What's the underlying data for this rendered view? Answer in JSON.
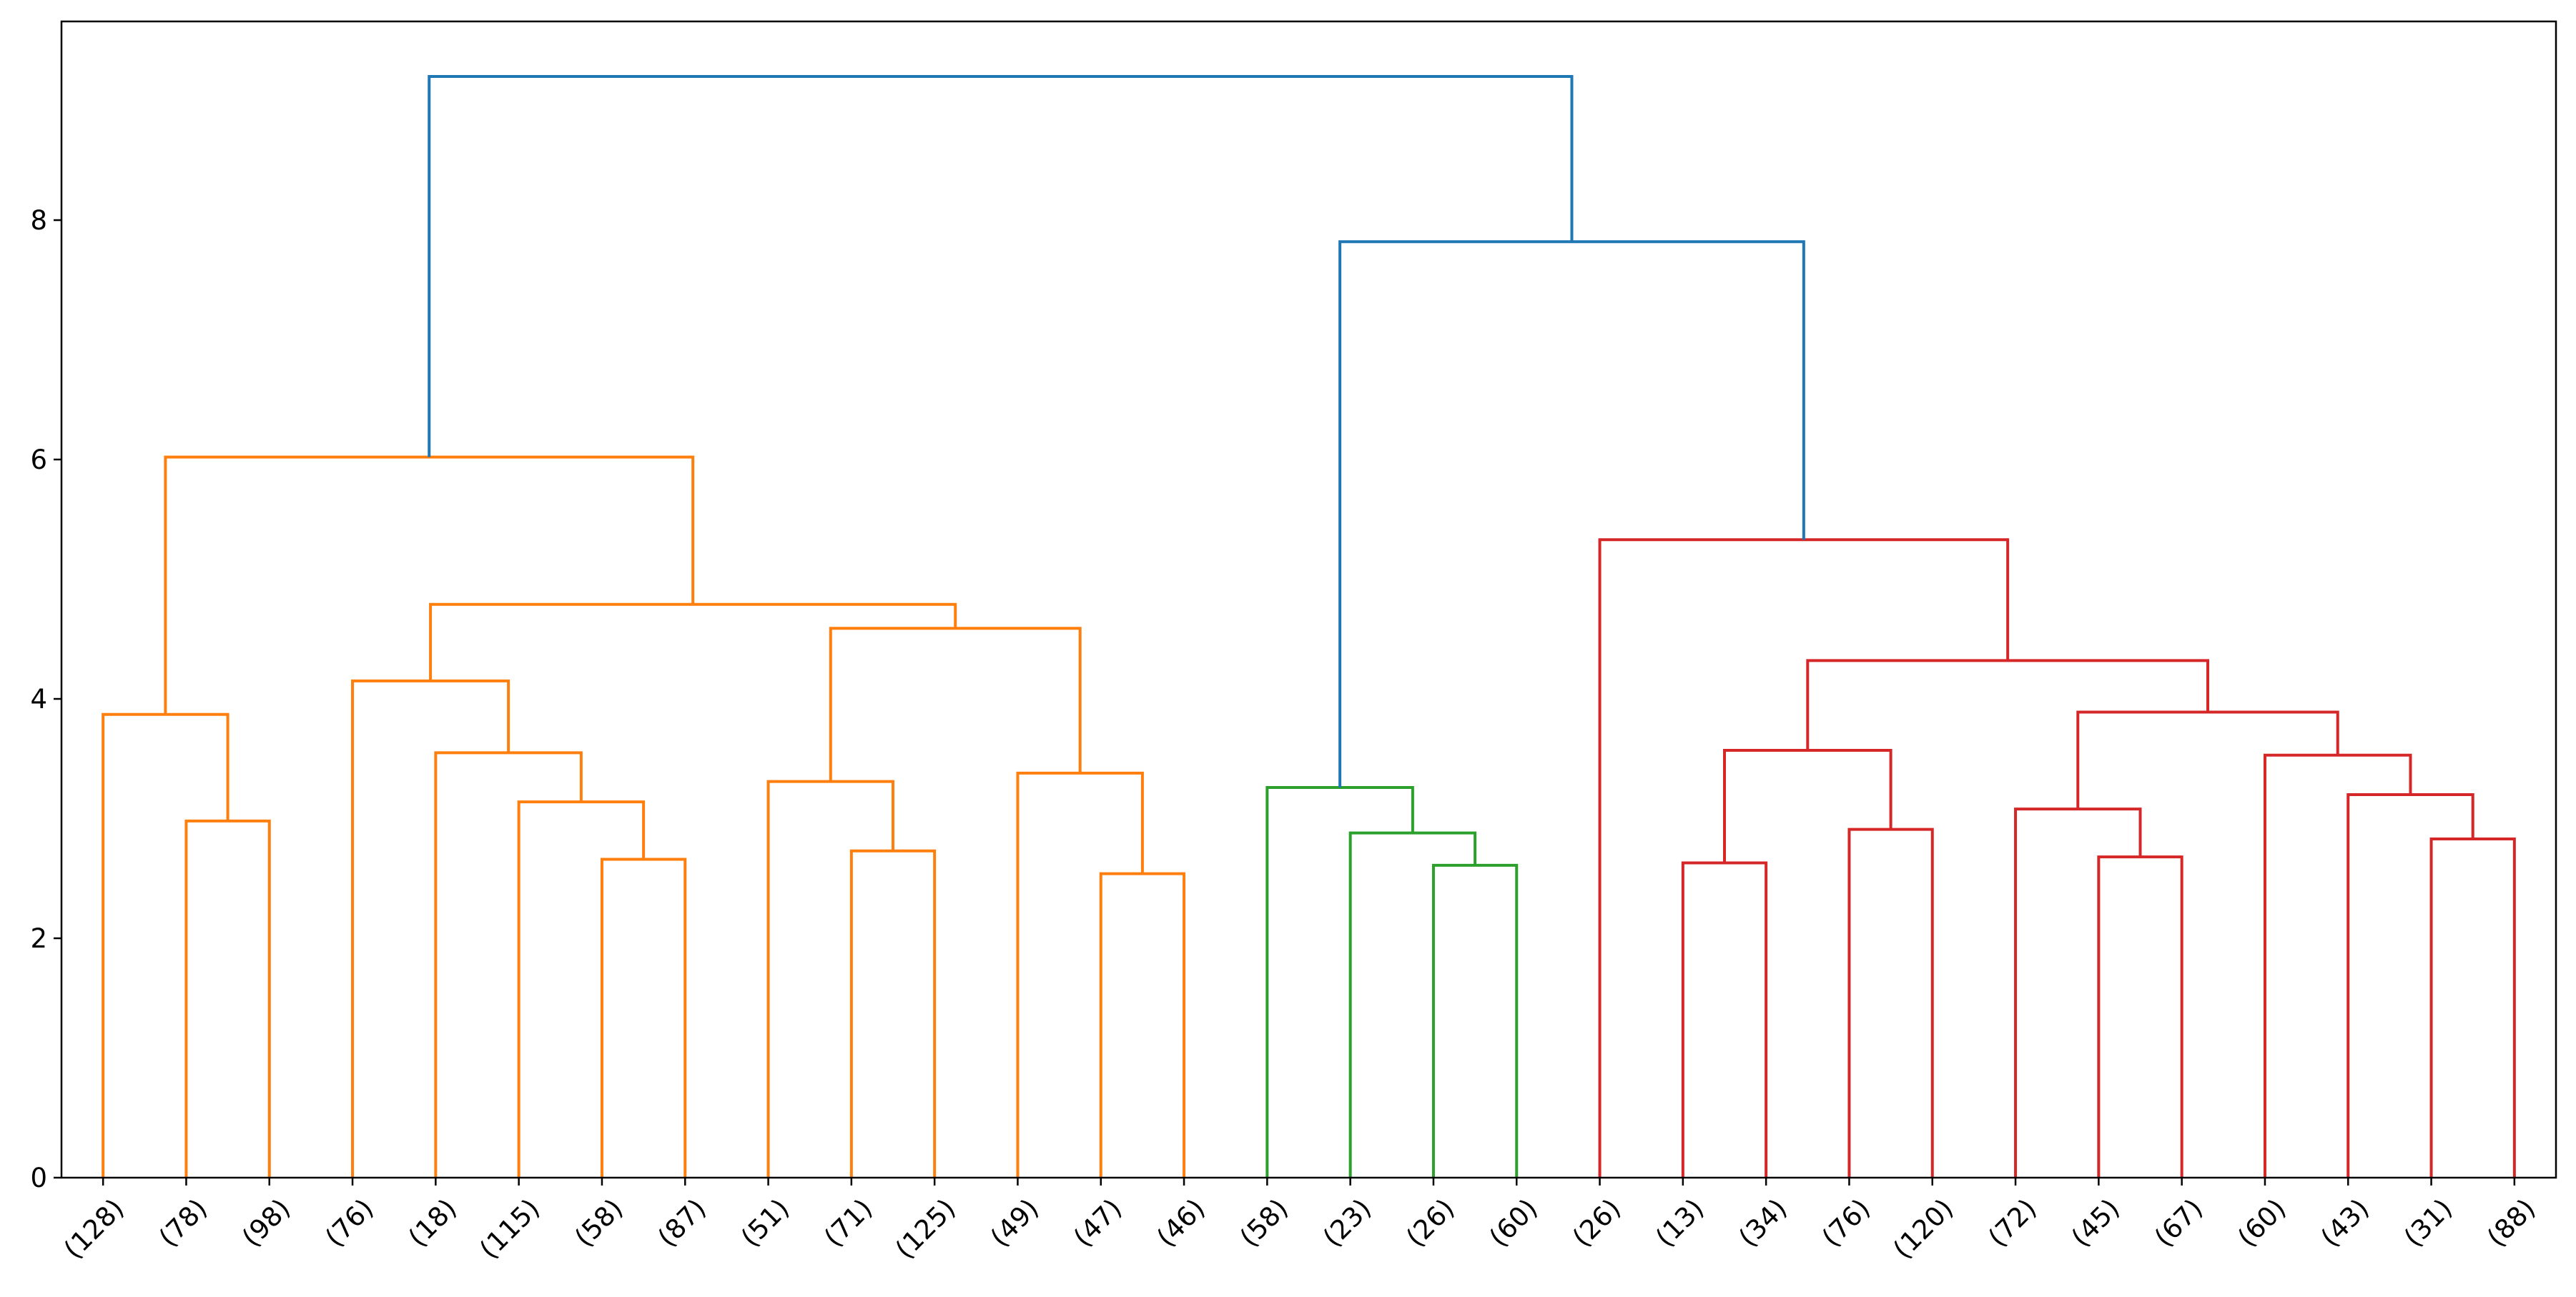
{
  "chart_data": {
    "type": "dendrogram",
    "ylim": [
      0,
      9.66
    ],
    "yticks": [
      0,
      2,
      4,
      6,
      8
    ],
    "leaf_labels": [
      "(128)",
      "(78)",
      "(98)",
      "(76)",
      "(18)",
      "(115)",
      "(58)",
      "(87)",
      "(51)",
      "(71)",
      "(125)",
      "(49)",
      "(47)",
      "(46)",
      "(58)",
      "(23)",
      "(26)",
      "(60)",
      "(26)",
      "(13)",
      "(34)",
      "(76)",
      "(120)",
      "(72)",
      "(45)",
      "(67)",
      "(60)",
      "(43)",
      "(31)",
      "(88)"
    ],
    "cluster_colors": {
      "C0": "#1f77b4",
      "C1": "#ff7f0e",
      "C2": "#2ca02c",
      "C3": "#d62728"
    },
    "links": [
      {
        "left": 1,
        "right": 2,
        "height": 2.98,
        "color": "C1"
      },
      {
        "left": 0,
        "right": "1-2",
        "height": 3.87,
        "color": "C1"
      },
      {
        "left": 6,
        "right": 7,
        "height": 2.66,
        "color": "C1"
      },
      {
        "left": 5,
        "right": "6-7",
        "height": 3.14,
        "color": "C1"
      },
      {
        "left": 4,
        "right": "5-7",
        "height": 3.55,
        "color": "C1"
      },
      {
        "left": 3,
        "right": "4-7",
        "height": 4.15,
        "color": "C1"
      },
      {
        "left": 9,
        "right": 10,
        "height": 2.73,
        "color": "C1"
      },
      {
        "left": 8,
        "right": "9-10",
        "height": 3.31,
        "color": "C1"
      },
      {
        "left": 12,
        "right": 13,
        "height": 2.54,
        "color": "C1"
      },
      {
        "left": 11,
        "right": "12-13",
        "height": 3.38,
        "color": "C1"
      },
      {
        "left": "8-10",
        "right": "11-13",
        "height": 4.59,
        "color": "C1"
      },
      {
        "left": "3-7",
        "right": "8-13",
        "height": 4.79,
        "color": "C1"
      },
      {
        "left": "0-2",
        "right": "3-13",
        "height": 6.02,
        "color": "C1"
      },
      {
        "left": 16,
        "right": 17,
        "height": 2.61,
        "color": "C2"
      },
      {
        "left": 15,
        "right": "16-17",
        "height": 2.88,
        "color": "C2"
      },
      {
        "left": 14,
        "right": "15-17",
        "height": 3.26,
        "color": "C2"
      },
      {
        "left": 19,
        "right": 20,
        "height": 2.63,
        "color": "C3"
      },
      {
        "left": 21,
        "right": 22,
        "height": 2.91,
        "color": "C3"
      },
      {
        "left": "19-20",
        "right": "21-22",
        "height": 3.57,
        "color": "C3"
      },
      {
        "left": 24,
        "right": 25,
        "height": 2.68,
        "color": "C3"
      },
      {
        "left": 23,
        "right": "24-25",
        "height": 3.08,
        "color": "C3"
      },
      {
        "left": 28,
        "right": 29,
        "height": 2.83,
        "color": "C3"
      },
      {
        "left": 27,
        "right": "28-29",
        "height": 3.2,
        "color": "C3"
      },
      {
        "left": 26,
        "right": "27-29",
        "height": 3.53,
        "color": "C3"
      },
      {
        "left": "23-25",
        "right": "26-29",
        "height": 3.89,
        "color": "C3"
      },
      {
        "left": "19-22",
        "right": "23-29",
        "height": 4.32,
        "color": "C3"
      },
      {
        "left": 18,
        "right": "19-29",
        "height": 5.33,
        "color": "C3"
      },
      {
        "left": "14-17",
        "right": "18-29",
        "height": 7.82,
        "color": "C0"
      },
      {
        "left": "0-13",
        "right": "14-29",
        "height": 9.2,
        "color": "C0"
      }
    ],
    "grid": false,
    "legend": "none"
  }
}
